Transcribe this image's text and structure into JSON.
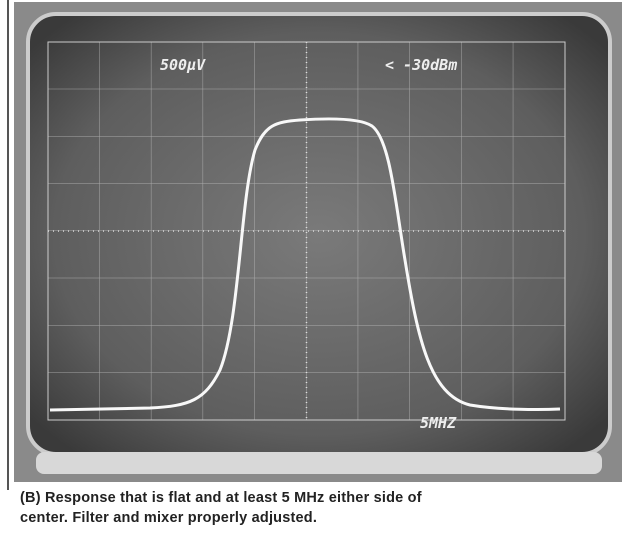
{
  "screen": {
    "amplitude_label": "500µV",
    "reference_label": "< -30dBm",
    "span_label": "5MHZ"
  },
  "caption": {
    "lines": [
      "(B) Response that is flat and at least 5 MHz either side of",
      "center. Filter and mixer properly adjusted."
    ]
  }
}
